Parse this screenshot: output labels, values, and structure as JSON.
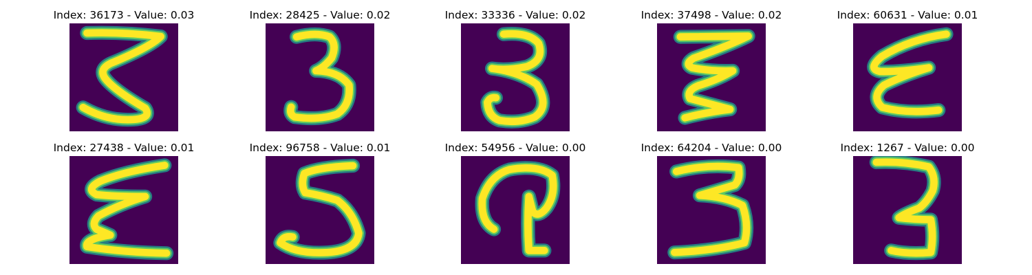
{
  "theme": {
    "background": "#440154",
    "stroke_main": "#fde725",
    "stroke_edge": "#5ec962",
    "stroke_halo": "#21918c"
  },
  "panels": [
    {
      "title": "Index: 36173 - Value: 0.03",
      "digit": "3"
    },
    {
      "title": "Index: 28425 - Value: 0.02",
      "digit": "3"
    },
    {
      "title": "Index: 33336 - Value: 0.02",
      "digit": "3"
    },
    {
      "title": "Index: 37498 - Value: 0.02",
      "digit": "3"
    },
    {
      "title": "Index: 60631 - Value: 0.01",
      "digit": "3"
    },
    {
      "title": "Index: 27438 - Value: 0.01",
      "digit": "3"
    },
    {
      "title": "Index: 96758 - Value: 0.01",
      "digit": "3"
    },
    {
      "title": "Index: 54956 - Value: 0.00",
      "digit": "3"
    },
    {
      "title": "Index: 64204 - Value: 0.00",
      "digit": "3"
    },
    {
      "title": "Index: 1267 - Value: 0.00",
      "digit": "3"
    }
  ]
}
